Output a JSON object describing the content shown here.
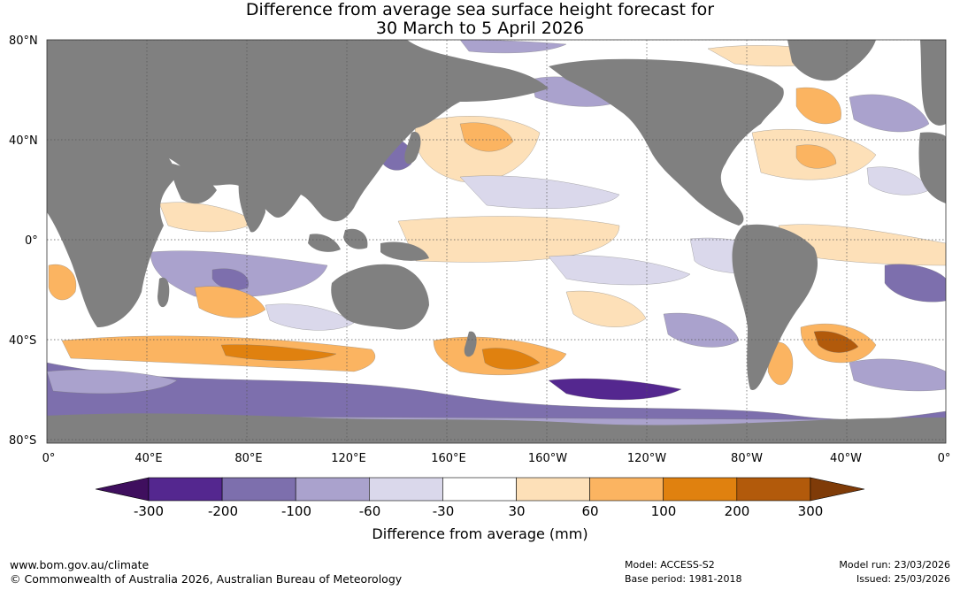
{
  "title_line1": "Difference from average sea surface height forecast for",
  "title_line2": "30 March to 5 April 2026",
  "lat_labels": [
    "80°N",
    "40°N",
    "0°",
    "40°S",
    "80°S"
  ],
  "lon_labels": [
    "0°",
    "40°E",
    "80°E",
    "120°E",
    "160°E",
    "160°W",
    "120°W",
    "80°W",
    "40°W",
    "0°"
  ],
  "colorbar": {
    "ticks": [
      "-300",
      "-200",
      "-100",
      "-60",
      "-30",
      "30",
      "60",
      "100",
      "200",
      "300"
    ],
    "colors": [
      "#3f0f5e",
      "#54278f",
      "#7d6fad",
      "#aaa2cd",
      "#dad8eb",
      "#ffffff",
      "#fde0b8",
      "#fbb461",
      "#e0810f",
      "#b25a0b",
      "#7f3b08"
    ],
    "title": "Difference from average (mm)"
  },
  "land_color": "#808080",
  "footer": {
    "website": "www.bom.gov.au/climate",
    "copyright": "© Commonwealth of Australia 2026, Australian Bureau of Meteorology",
    "model": "Model: ACCESS-S2",
    "base_period": "Base period: 1981-2018",
    "model_run": "Model run: 23/03/2026",
    "issued": "Issued: 25/03/2026"
  }
}
